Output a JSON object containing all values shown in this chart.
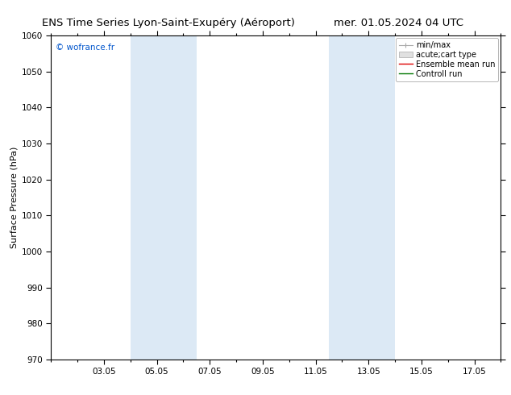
{
  "title_left": "ENS Time Series Lyon-Saint-Exupéry (Aéroport)",
  "title_right": "mer. 01.05.2024 04 UTC",
  "ylabel": "Surface Pressure (hPa)",
  "ylim": [
    970,
    1060
  ],
  "yticks": [
    970,
    980,
    990,
    1000,
    1010,
    1020,
    1030,
    1040,
    1050,
    1060
  ],
  "xtick_labels": [
    "03.05",
    "05.05",
    "07.05",
    "09.05",
    "11.05",
    "13.05",
    "15.05",
    "17.05"
  ],
  "xtick_positions": [
    2,
    4,
    6,
    8,
    10,
    12,
    14,
    16
  ],
  "shade_bands": [
    {
      "x_start": 3.0,
      "x_end": 5.5,
      "color": "#dce9f5"
    },
    {
      "x_start": 10.5,
      "x_end": 13.0,
      "color": "#dce9f5"
    }
  ],
  "watermark": "© wofrance.fr",
  "watermark_color": "#0055cc",
  "legend_labels": [
    "min/max",
    "acute;cart type",
    "Ensemble mean run",
    "Controll run"
  ],
  "legend_line_colors": [
    "#aaaaaa",
    "#cccccc",
    "#dd0000",
    "#007700"
  ],
  "background_color": "#ffffff",
  "plot_bg_color": "#ffffff",
  "title_fontsize": 9.5,
  "axis_label_fontsize": 8,
  "tick_fontsize": 7.5,
  "legend_fontsize": 7
}
